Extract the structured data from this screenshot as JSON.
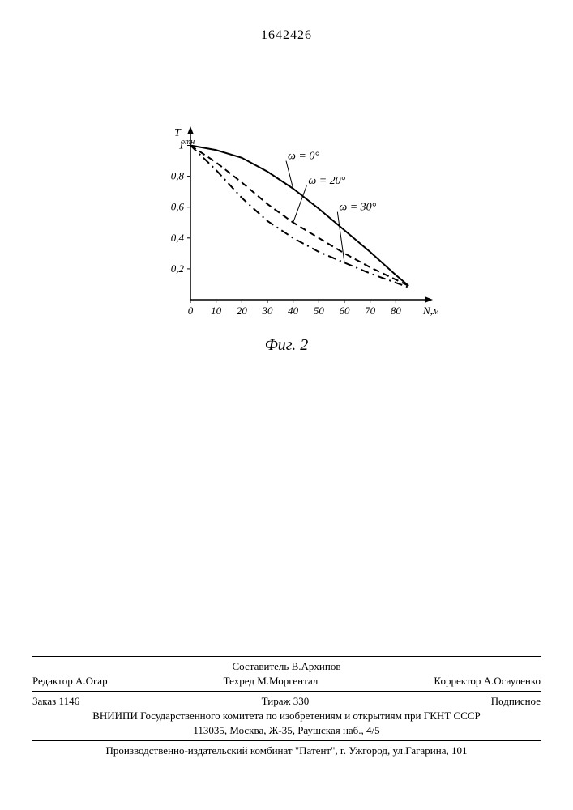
{
  "document_number": "1642426",
  "figure_label": "Фиг. 2",
  "chart": {
    "type": "line",
    "y_axis_label": "T",
    "y_axis_sub": "отн",
    "x_axis_label": "N,мм⁻¹",
    "xlim": [
      0,
      90
    ],
    "ylim": [
      0,
      1.05
    ],
    "xticks": [
      0,
      10,
      20,
      30,
      40,
      50,
      60,
      70,
      80
    ],
    "yticks": [
      0.2,
      0.4,
      0.6,
      0.8,
      1.0
    ],
    "ytick_labels": [
      "0,2",
      "0,4",
      "0,6",
      "0,8",
      "1"
    ],
    "axis_color": "#000000",
    "background": "#ffffff",
    "line_color": "#000000",
    "line_width": 2,
    "label_fontsize": 14,
    "tick_fontsize": 13,
    "series": [
      {
        "name": "ω = 0°",
        "dash": "solid",
        "annotation_xy": [
          36,
          0.91
        ],
        "points": [
          [
            0,
            1.0
          ],
          [
            10,
            0.97
          ],
          [
            20,
            0.92
          ],
          [
            30,
            0.83
          ],
          [
            40,
            0.72
          ],
          [
            50,
            0.59
          ],
          [
            60,
            0.45
          ],
          [
            70,
            0.31
          ],
          [
            80,
            0.16
          ],
          [
            85,
            0.09
          ]
        ]
      },
      {
        "name": "ω = 20°",
        "dash": "dashed",
        "annotation_xy": [
          44,
          0.75
        ],
        "points": [
          [
            0,
            1.0
          ],
          [
            10,
            0.89
          ],
          [
            20,
            0.76
          ],
          [
            30,
            0.62
          ],
          [
            40,
            0.5
          ],
          [
            50,
            0.4
          ],
          [
            60,
            0.3
          ],
          [
            70,
            0.21
          ],
          [
            80,
            0.13
          ],
          [
            85,
            0.09
          ]
        ]
      },
      {
        "name": "ω = 30°",
        "dash": "dashdot",
        "annotation_xy": [
          56,
          0.58
        ],
        "points": [
          [
            0,
            1.0
          ],
          [
            10,
            0.84
          ],
          [
            20,
            0.66
          ],
          [
            30,
            0.51
          ],
          [
            40,
            0.4
          ],
          [
            50,
            0.31
          ],
          [
            60,
            0.24
          ],
          [
            70,
            0.17
          ],
          [
            80,
            0.11
          ],
          [
            85,
            0.08
          ]
        ]
      }
    ]
  },
  "footer": {
    "compiler": "Составитель В.Архипов",
    "editor_label": "Редактор",
    "editor_name": "А.Огар",
    "techred_label": "Техред",
    "techred_name": "М.Моргентал",
    "corrector_label": "Корректор",
    "corrector_name": "А.Осауленко",
    "order": "Заказ 1146",
    "tirage": "Тираж 330",
    "subscription": "Подписное",
    "org": "ВНИИПИ Государственного комитета по изобретениям и открытиям при ГКНТ СССР",
    "address": "113035, Москва, Ж-35, Раушская наб., 4/5",
    "plant": "Производственно-издательский комбинат \"Патент\", г. Ужгород, ул.Гагарина, 101"
  }
}
